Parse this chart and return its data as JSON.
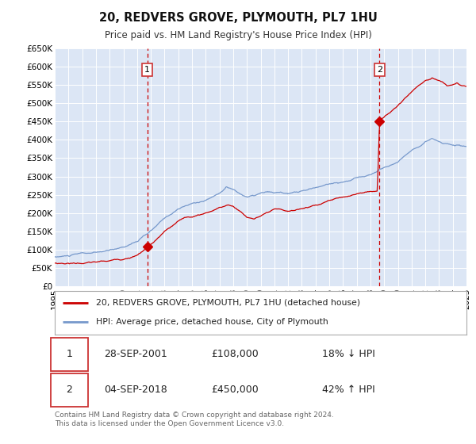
{
  "title": "20, REDVERS GROVE, PLYMOUTH, PL7 1HU",
  "subtitle": "Price paid vs. HM Land Registry's House Price Index (HPI)",
  "ylim": [
    0,
    650000
  ],
  "xlim_start": 1995,
  "xlim_end": 2025,
  "yticks": [
    0,
    50000,
    100000,
    150000,
    200000,
    250000,
    300000,
    350000,
    400000,
    450000,
    500000,
    550000,
    600000,
    650000
  ],
  "ytick_labels": [
    "£0",
    "£50K",
    "£100K",
    "£150K",
    "£200K",
    "£250K",
    "£300K",
    "£350K",
    "£400K",
    "£450K",
    "£500K",
    "£550K",
    "£600K",
    "£650K"
  ],
  "red_line_color": "#cc0000",
  "blue_line_color": "#7799cc",
  "sale1_year": 2001.75,
  "sale1_price": 108000,
  "sale2_year": 2018.67,
  "sale2_price": 450000,
  "legend_label_red": "20, REDVERS GROVE, PLYMOUTH, PL7 1HU (detached house)",
  "legend_label_blue": "HPI: Average price, detached house, City of Plymouth",
  "table_row1": [
    "1",
    "28-SEP-2001",
    "£108,000",
    "18% ↓ HPI"
  ],
  "table_row2": [
    "2",
    "04-SEP-2018",
    "£450,000",
    "42% ↑ HPI"
  ],
  "footer_text": "Contains HM Land Registry data © Crown copyright and database right 2024.\nThis data is licensed under the Open Government Licence v3.0.",
  "background_color": "#ffffff",
  "plot_bg_color": "#dce6f5",
  "grid_color": "#ffffff"
}
